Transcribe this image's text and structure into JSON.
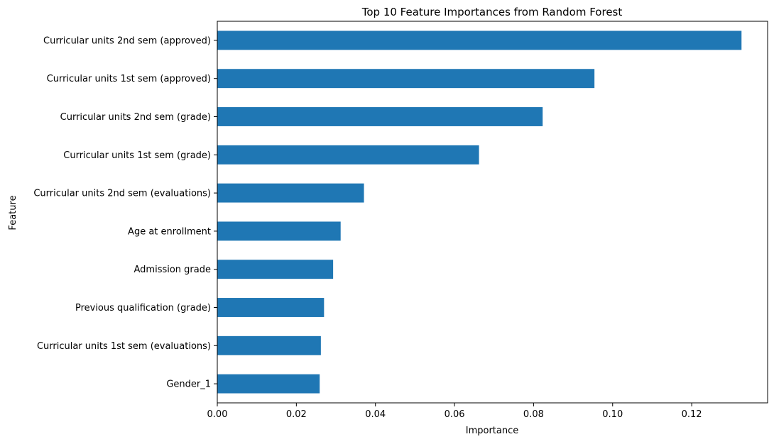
{
  "chart_data": {
    "type": "bar",
    "orientation": "horizontal",
    "title": "Top 10 Feature Importances from Random Forest",
    "xlabel": "Importance",
    "ylabel": "Feature",
    "categories": [
      "Curricular units 2nd sem (approved)",
      "Curricular units 1st sem (approved)",
      "Curricular units 2nd sem (grade)",
      "Curricular units 1st sem (grade)",
      "Curricular units 2nd sem (evaluations)",
      "Age at enrollment",
      "Admission grade",
      "Previous qualification (grade)",
      "Curricular units 1st sem (evaluations)",
      "Gender_1"
    ],
    "values": [
      0.1326,
      0.0954,
      0.0823,
      0.0662,
      0.0371,
      0.0312,
      0.0293,
      0.027,
      0.0262,
      0.0259
    ],
    "xlim": [
      0,
      0.1392
    ],
    "xticks": [
      0.0,
      0.02,
      0.04,
      0.06,
      0.08,
      0.1,
      0.12
    ],
    "xtick_labels": [
      "0.00",
      "0.02",
      "0.04",
      "0.06",
      "0.08",
      "0.10",
      "0.12"
    ],
    "bar_color": "#1f77b4",
    "grid": false,
    "legend": "none"
  }
}
